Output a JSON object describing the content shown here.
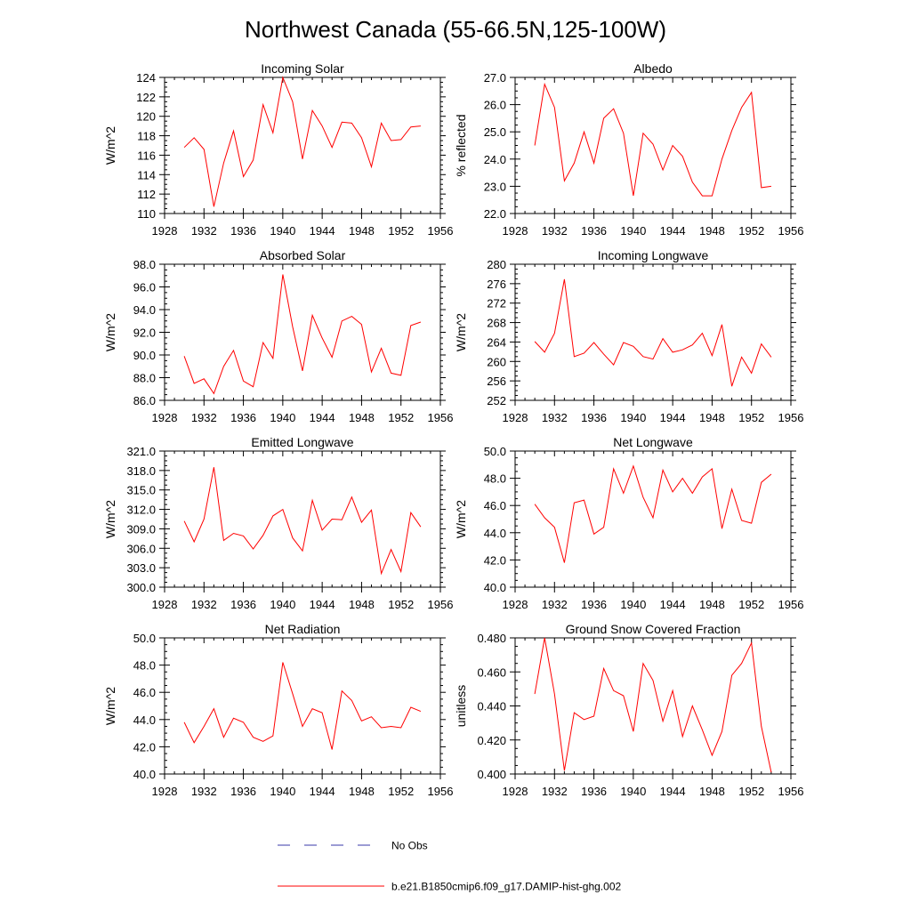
{
  "title": "Northwest Canada (55-66.5N,125-100W)",
  "colors": {
    "model": "#ff0000",
    "obs": "#3a3aaa",
    "axes": "#000000"
  },
  "legend": {
    "obs_label": "No Obs",
    "model_label": "b.e21.B1850cmip6.f09_g17.DAMIP-hist-ghg.002"
  },
  "chart_data": [
    {
      "type": "line",
      "title": "Incoming Solar",
      "ylabel": "W/m^2",
      "xlim": [
        1928,
        1956
      ],
      "ylim": [
        110,
        124
      ],
      "xticks": [
        1928,
        1932,
        1936,
        1940,
        1944,
        1948,
        1952,
        1956
      ],
      "yticks": [
        "110",
        "112",
        "114",
        "116",
        "118",
        "120",
        "122",
        "124"
      ],
      "series": [
        {
          "x": [
            1930,
            1931,
            1932,
            1933,
            1934,
            1935,
            1936,
            1937,
            1938,
            1939,
            1940,
            1941,
            1942,
            1943,
            1944,
            1945,
            1946,
            1947,
            1948,
            1949,
            1950,
            1951,
            1952,
            1953,
            1954
          ],
          "values": [
            116.8,
            117.8,
            116.6,
            110.7,
            115.2,
            118.5,
            113.8,
            115.5,
            121.2,
            118.3,
            124.0,
            121.5,
            115.6,
            120.6,
            119.0,
            116.8,
            119.4,
            119.3,
            117.8,
            114.8,
            119.3,
            117.5,
            117.6,
            118.9,
            119.0
          ]
        }
      ]
    },
    {
      "type": "line",
      "title": "Albedo",
      "ylabel": "% reflected",
      "xlim": [
        1928,
        1956
      ],
      "ylim": [
        22,
        27
      ],
      "xticks": [
        1928,
        1932,
        1936,
        1940,
        1944,
        1948,
        1952,
        1956
      ],
      "yticks": [
        "22.0",
        "23.0",
        "24.0",
        "25.0",
        "26.0",
        "27.0"
      ],
      "series": [
        {
          "x": [
            1930,
            1931,
            1932,
            1933,
            1934,
            1935,
            1936,
            1937,
            1938,
            1939,
            1940,
            1941,
            1942,
            1943,
            1944,
            1945,
            1946,
            1947,
            1948,
            1949,
            1950,
            1951,
            1952,
            1953,
            1954
          ],
          "values": [
            24.5,
            26.75,
            25.9,
            23.2,
            23.85,
            25.0,
            23.85,
            25.5,
            25.85,
            24.95,
            22.65,
            24.95,
            24.55,
            23.6,
            24.5,
            24.1,
            23.15,
            22.65,
            22.65,
            24.0,
            25.05,
            25.9,
            26.45,
            22.95,
            23.0
          ]
        }
      ]
    },
    {
      "type": "line",
      "title": "Absorbed Solar",
      "ylabel": "W/m^2",
      "xlim": [
        1928,
        1956
      ],
      "ylim": [
        86,
        98
      ],
      "xticks": [
        1928,
        1932,
        1936,
        1940,
        1944,
        1948,
        1952,
        1956
      ],
      "yticks": [
        "86.0",
        "88.0",
        "90.0",
        "92.0",
        "94.0",
        "96.0",
        "98.0"
      ],
      "series": [
        {
          "x": [
            1930,
            1931,
            1932,
            1933,
            1934,
            1935,
            1936,
            1937,
            1938,
            1939,
            1940,
            1941,
            1942,
            1943,
            1944,
            1945,
            1946,
            1947,
            1948,
            1949,
            1950,
            1951,
            1952,
            1953,
            1954
          ],
          "values": [
            89.9,
            87.5,
            87.9,
            86.6,
            89.0,
            90.4,
            87.7,
            87.2,
            91.1,
            89.7,
            97.1,
            92.5,
            88.6,
            93.5,
            91.5,
            89.8,
            93.0,
            93.4,
            92.7,
            88.5,
            90.6,
            88.4,
            88.2,
            92.6,
            92.9
          ]
        }
      ]
    },
    {
      "type": "line",
      "title": "Incoming Longwave",
      "ylabel": "W/m^2",
      "xlim": [
        1928,
        1956
      ],
      "ylim": [
        252,
        280
      ],
      "xticks": [
        1928,
        1932,
        1936,
        1940,
        1944,
        1948,
        1952,
        1956
      ],
      "yticks": [
        "252",
        "256",
        "260",
        "264",
        "268",
        "272",
        "276",
        "280"
      ],
      "series": [
        {
          "x": [
            1930,
            1931,
            1932,
            1933,
            1934,
            1935,
            1936,
            1937,
            1938,
            1939,
            1940,
            1941,
            1942,
            1943,
            1944,
            1945,
            1946,
            1947,
            1948,
            1949,
            1950,
            1951,
            1952,
            1953,
            1954
          ],
          "values": [
            264.1,
            261.9,
            265.8,
            276.9,
            261.0,
            261.7,
            263.9,
            261.5,
            259.3,
            263.9,
            263.1,
            261.0,
            260.5,
            264.7,
            261.9,
            262.4,
            263.4,
            265.8,
            261.2,
            267.6,
            254.9,
            260.9,
            257.6,
            263.6,
            260.9
          ]
        }
      ]
    },
    {
      "type": "line",
      "title": "Emitted Longwave",
      "ylabel": "W/m^2",
      "xlim": [
        1928,
        1956
      ],
      "ylim": [
        300,
        321
      ],
      "xticks": [
        1928,
        1932,
        1936,
        1940,
        1944,
        1948,
        1952,
        1956
      ],
      "yticks": [
        "300.0",
        "303.0",
        "306.0",
        "309.0",
        "312.0",
        "315.0",
        "318.0",
        "321.0"
      ],
      "series": [
        {
          "x": [
            1930,
            1931,
            1932,
            1933,
            1934,
            1935,
            1936,
            1937,
            1938,
            1939,
            1940,
            1941,
            1942,
            1943,
            1944,
            1945,
            1946,
            1947,
            1948,
            1949,
            1950,
            1951,
            1952,
            1953,
            1954
          ],
          "values": [
            310.2,
            307.0,
            310.5,
            318.5,
            307.2,
            308.3,
            307.9,
            305.9,
            308.0,
            311.0,
            312.0,
            307.6,
            305.6,
            313.4,
            308.8,
            310.5,
            310.4,
            313.9,
            310.0,
            311.9,
            302.1,
            305.8,
            302.4,
            311.5,
            309.3
          ]
        }
      ]
    },
    {
      "type": "line",
      "title": "Net Longwave",
      "ylabel": "W/m^2",
      "xlim": [
        1928,
        1956
      ],
      "ylim": [
        40,
        50
      ],
      "xticks": [
        1928,
        1932,
        1936,
        1940,
        1944,
        1948,
        1952,
        1956
      ],
      "yticks": [
        "40.0",
        "42.0",
        "44.0",
        "46.0",
        "48.0",
        "50.0"
      ],
      "series": [
        {
          "x": [
            1930,
            1931,
            1932,
            1933,
            1934,
            1935,
            1936,
            1937,
            1938,
            1939,
            1940,
            1941,
            1942,
            1943,
            1944,
            1945,
            1946,
            1947,
            1948,
            1949,
            1950,
            1951,
            1952,
            1953,
            1954
          ],
          "values": [
            46.1,
            45.1,
            44.4,
            41.8,
            46.2,
            46.4,
            43.9,
            44.4,
            48.7,
            46.9,
            48.9,
            46.6,
            45.1,
            48.6,
            47.0,
            48.0,
            46.9,
            48.1,
            48.7,
            44.3,
            47.2,
            44.9,
            44.7,
            47.7,
            48.3
          ]
        }
      ]
    },
    {
      "type": "line",
      "title": "Net Radiation",
      "ylabel": "W/m^2",
      "xlim": [
        1928,
        1956
      ],
      "ylim": [
        40,
        50
      ],
      "xticks": [
        1928,
        1932,
        1936,
        1940,
        1944,
        1948,
        1952,
        1956
      ],
      "yticks": [
        "40.0",
        "42.0",
        "44.0",
        "46.0",
        "48.0",
        "50.0"
      ],
      "series": [
        {
          "x": [
            1930,
            1931,
            1932,
            1933,
            1934,
            1935,
            1936,
            1937,
            1938,
            1939,
            1940,
            1941,
            1942,
            1943,
            1944,
            1945,
            1946,
            1947,
            1948,
            1949,
            1950,
            1951,
            1952,
            1953,
            1954
          ],
          "values": [
            43.8,
            42.3,
            43.5,
            44.8,
            42.7,
            44.1,
            43.8,
            42.7,
            42.4,
            42.8,
            48.2,
            45.9,
            43.5,
            44.8,
            44.5,
            41.8,
            46.1,
            45.4,
            43.9,
            44.2,
            43.4,
            43.5,
            43.4,
            44.9,
            44.6
          ]
        }
      ]
    },
    {
      "type": "line",
      "title": "Ground Snow Covered Fraction",
      "ylabel": "unitless",
      "xlim": [
        1928,
        1956
      ],
      "ylim": [
        0.4,
        0.48
      ],
      "xticks": [
        1928,
        1932,
        1936,
        1940,
        1944,
        1948,
        1952,
        1956
      ],
      "yticks": [
        "0.400",
        "0.420",
        "0.440",
        "0.460",
        "0.480"
      ],
      "series": [
        {
          "x": [
            1930,
            1931,
            1932,
            1933,
            1934,
            1935,
            1936,
            1937,
            1938,
            1939,
            1940,
            1941,
            1942,
            1943,
            1944,
            1945,
            1946,
            1947,
            1948,
            1949,
            1950,
            1951,
            1952,
            1953,
            1954
          ],
          "values": [
            0.447,
            0.48,
            0.447,
            0.402,
            0.436,
            0.432,
            0.434,
            0.462,
            0.449,
            0.446,
            0.425,
            0.465,
            0.455,
            0.431,
            0.449,
            0.422,
            0.44,
            0.426,
            0.411,
            0.425,
            0.458,
            0.465,
            0.477,
            0.428,
            0.401
          ]
        }
      ]
    }
  ]
}
